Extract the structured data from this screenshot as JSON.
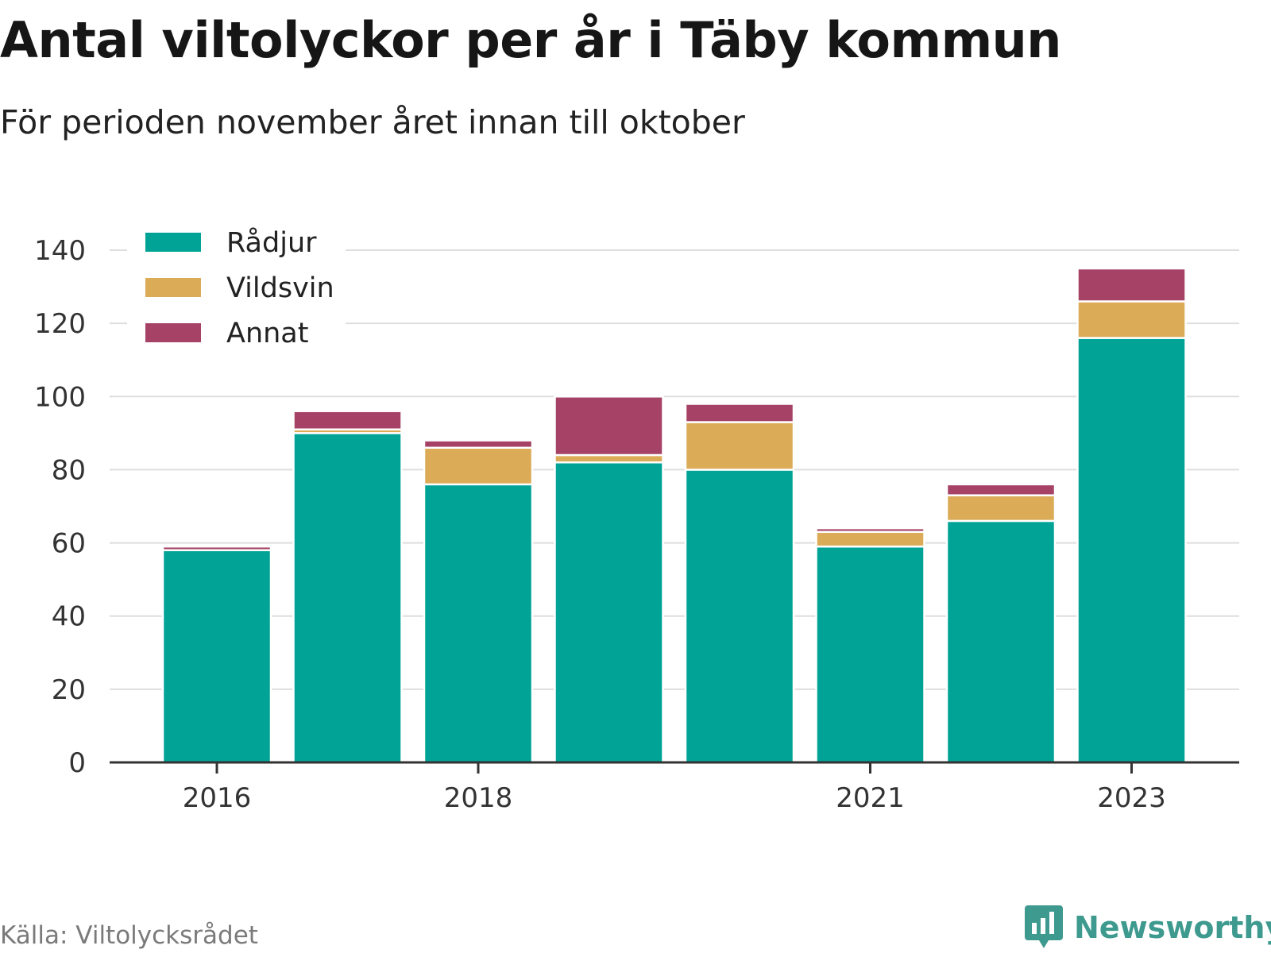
{
  "title": "Antal viltolyckor per år i Täby kommun",
  "subtitle": "För perioden november året innan till oktober",
  "source": "Källa: Viltolycksrådet",
  "brand": "Newsworthy",
  "colors": {
    "background": "#ffffff",
    "grid": "#dedede",
    "axis": "#333333",
    "brand": "#3e9a8f"
  },
  "chart_data": {
    "type": "bar",
    "stacked": true,
    "categories": [
      "2016",
      "2017",
      "2018",
      "2019",
      "2020",
      "2021",
      "2022",
      "2023"
    ],
    "x_tick_labels": [
      "2016",
      "2018",
      "2021",
      "2023"
    ],
    "series": [
      {
        "name": "Rådjur",
        "color": "#00a396",
        "values": [
          58,
          90,
          76,
          82,
          80,
          59,
          66,
          116
        ]
      },
      {
        "name": "Vildsvin",
        "color": "#dbab57",
        "values": [
          0,
          1,
          10,
          2,
          13,
          4,
          7,
          10
        ]
      },
      {
        "name": "Annat",
        "color": "#a54266",
        "values": [
          1,
          5,
          2,
          16,
          5,
          1,
          3,
          9
        ]
      }
    ],
    "ylim": [
      0,
      140
    ],
    "yticks": [
      0,
      20,
      40,
      60,
      80,
      100,
      120,
      140
    ],
    "grid": true,
    "legend": "top-left"
  }
}
